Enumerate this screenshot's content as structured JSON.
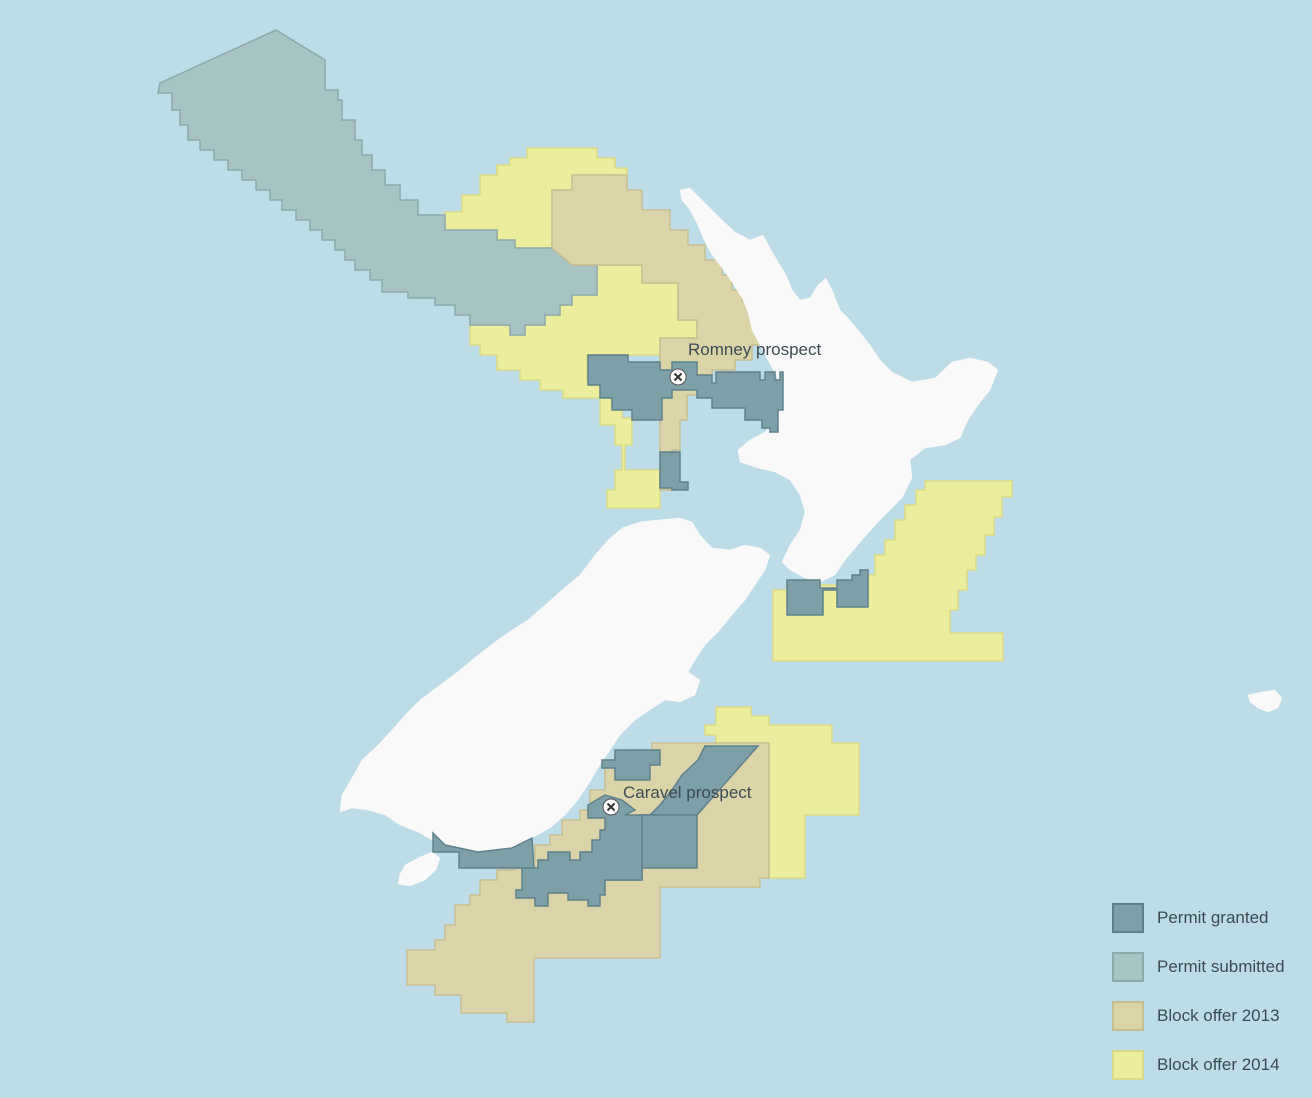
{
  "colors": {
    "sea": "#bcdde8",
    "land": "#f9f9f9",
    "permit_granted": "#7d9fa8",
    "permit_granted_border": "#5f818b",
    "permit_submitted": "#a8c3c4",
    "permit_submitted_border": "#8ca9ab",
    "block_offer_2013": "#dbd4a9",
    "block_offer_2013_border": "#c6be90",
    "block_offer_2014": "#ecee9d",
    "block_offer_2014_border": "#d9db84"
  },
  "markers": [
    {
      "label": "Romney prospect",
      "icon": "close-circle-icon"
    },
    {
      "label": "Caravel prospect",
      "icon": "close-circle-icon"
    }
  ],
  "legend": [
    {
      "label": "Permit granted",
      "key": "permit_granted"
    },
    {
      "label": "Permit submitted",
      "key": "permit_submitted"
    },
    {
      "label": "Block offer 2013",
      "key": "block_offer_2013"
    },
    {
      "label": "Block offer 2014",
      "key": "block_offer_2014"
    }
  ]
}
